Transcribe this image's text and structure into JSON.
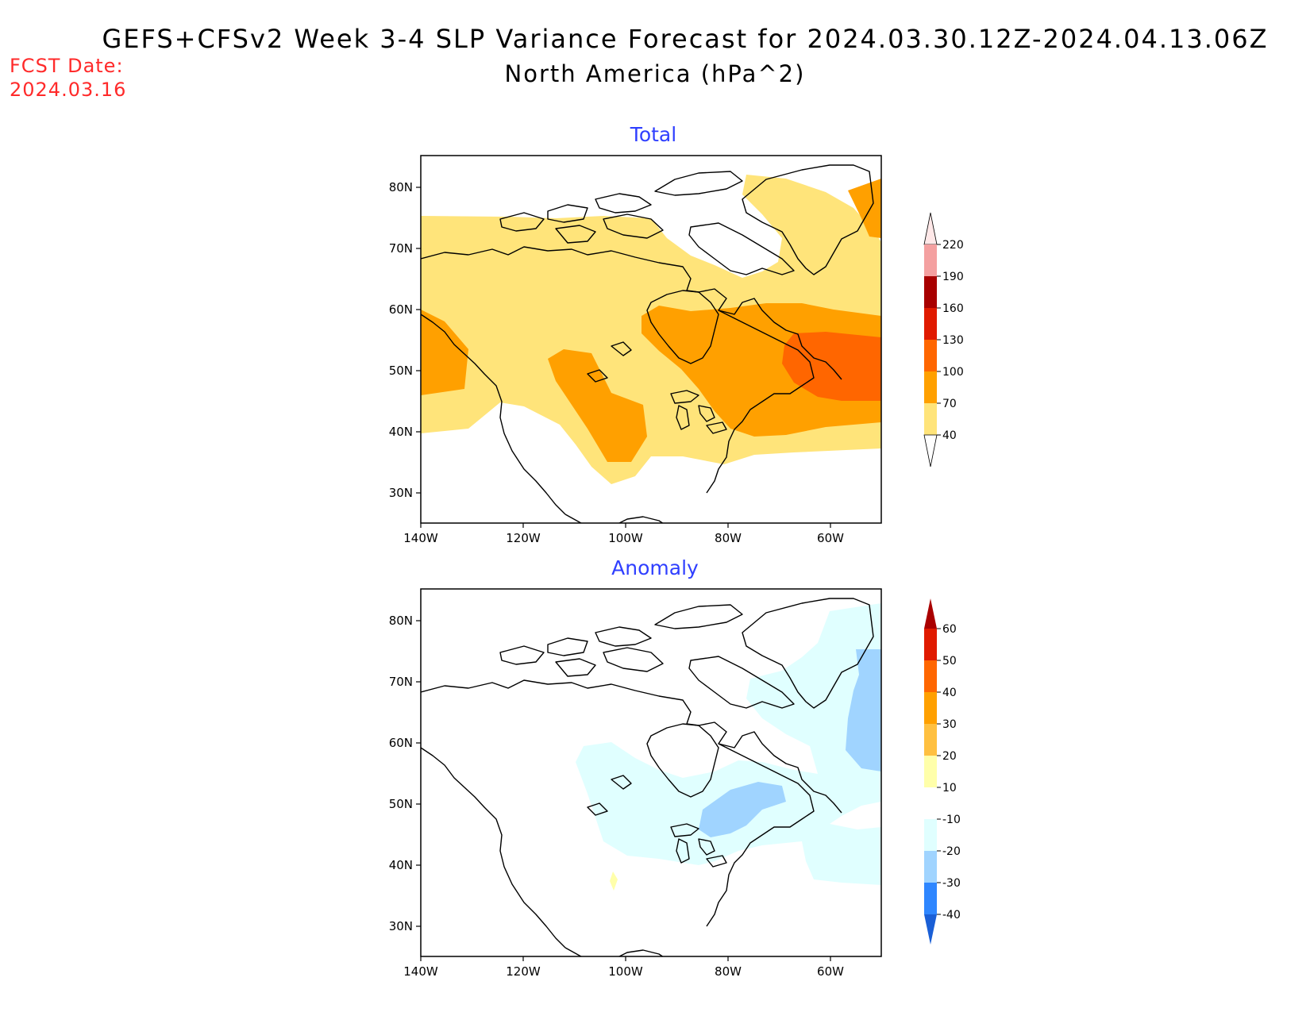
{
  "title_line1": "GEFS+CFSv2 Week 3-4 SLP Variance Forecast for 2024.03.30.12Z-2024.04.13.06Z",
  "title_line2": "North America (hPa^2)",
  "fcst_label": "FCST Date:",
  "fcst_date": "2024.03.16",
  "panels": [
    {
      "title": "Total",
      "title_color": "#2f3fff",
      "lat_ticks": [
        "80N",
        "70N",
        "60N",
        "50N",
        "40N",
        "30N"
      ],
      "lon_ticks": [
        "140W",
        "120W",
        "100W",
        "80W",
        "60W"
      ],
      "colorbar": {
        "levels": [
          "40",
          "70",
          "100",
          "130",
          "160",
          "190",
          "220"
        ],
        "colors": [
          "#ffffff",
          "#ffe47a",
          "#ffa000",
          "#ff6600",
          "#e01a00",
          "#a80000",
          "#f4a0a0",
          "#ffe8e8"
        ]
      }
    },
    {
      "title": "Anomaly",
      "title_color": "#2f3fff",
      "lat_ticks": [
        "80N",
        "70N",
        "60N",
        "50N",
        "40N",
        "30N"
      ],
      "lon_ticks": [
        "140W",
        "120W",
        "100W",
        "80W",
        "60W"
      ],
      "colorbar": {
        "levels": [
          "60",
          "50",
          "40",
          "30",
          "20",
          "10",
          "-10",
          "-20",
          "-30",
          "-40"
        ],
        "colors": [
          "#aa0000",
          "#e01a00",
          "#ff6600",
          "#ffa000",
          "#ffc040",
          "#ffffaa",
          "#ffffff",
          "#e0ffff",
          "#a0d4ff",
          "#2e86ff",
          "#1a5fd6"
        ]
      }
    }
  ]
}
